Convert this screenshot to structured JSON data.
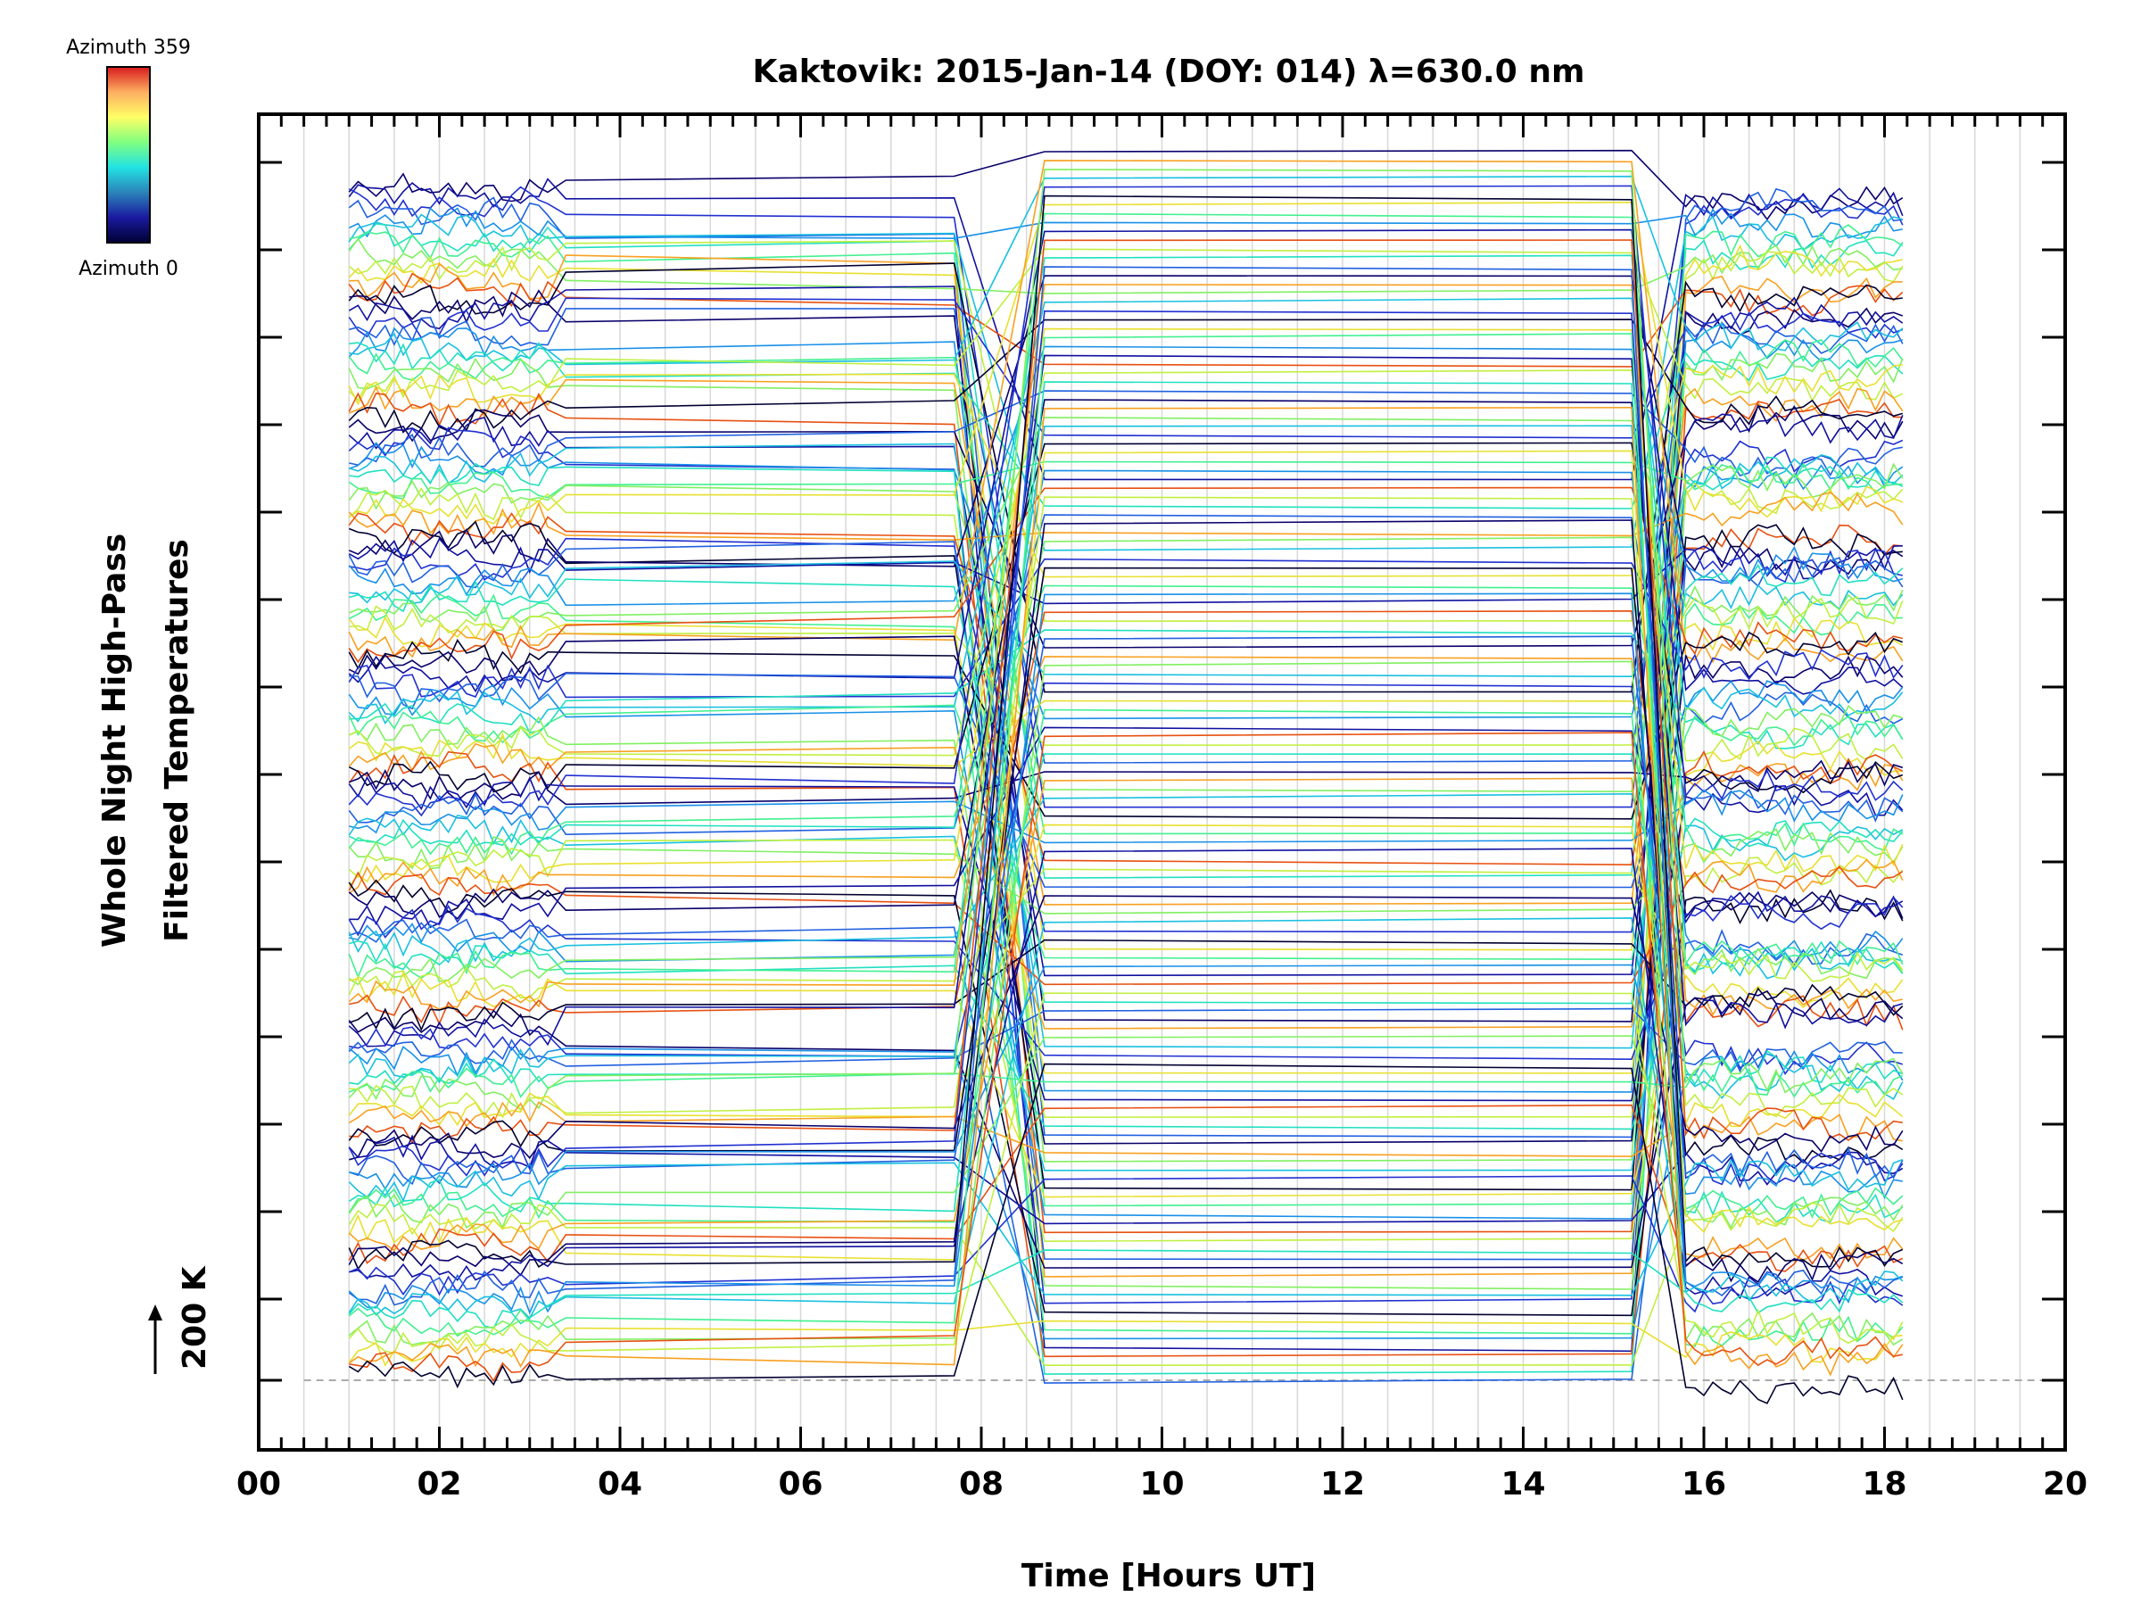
{
  "chart_data": {
    "type": "line",
    "title": "Kaktovik: 2015-Jan-14 (DOY: 014) λ=630.0 nm",
    "xlabel": "Time [Hours UT]",
    "ylabel_line1": "Whole Night High-Pass",
    "ylabel_line2": "Filtered Temperatures",
    "xlim": [
      0,
      20
    ],
    "x_ticks": [
      "00",
      "02",
      "04",
      "06",
      "08",
      "10",
      "12",
      "14",
      "16",
      "18",
      "20"
    ],
    "y_scale_label": "200 K",
    "y_baseline_value": 0,
    "grid": true,
    "colorbar": {
      "top_label": "Azimuth 359",
      "bottom_label": "Azimuth 0",
      "colors": [
        "#d7191c",
        "#fdae61",
        "#ffff66",
        "#80ff80",
        "#22e3e3",
        "#2b83ba",
        "#1a1aa0",
        "#000033"
      ]
    },
    "series_count": 140,
    "data_segments": [
      {
        "start": 1.0,
        "end": 3.3
      },
      {
        "start": 3.3,
        "end": 7.7
      },
      {
        "start": 7.7,
        "end": 8.7
      },
      {
        "start": 8.7,
        "end": 15.2
      },
      {
        "start": 15.2,
        "end": 18.3
      }
    ]
  }
}
